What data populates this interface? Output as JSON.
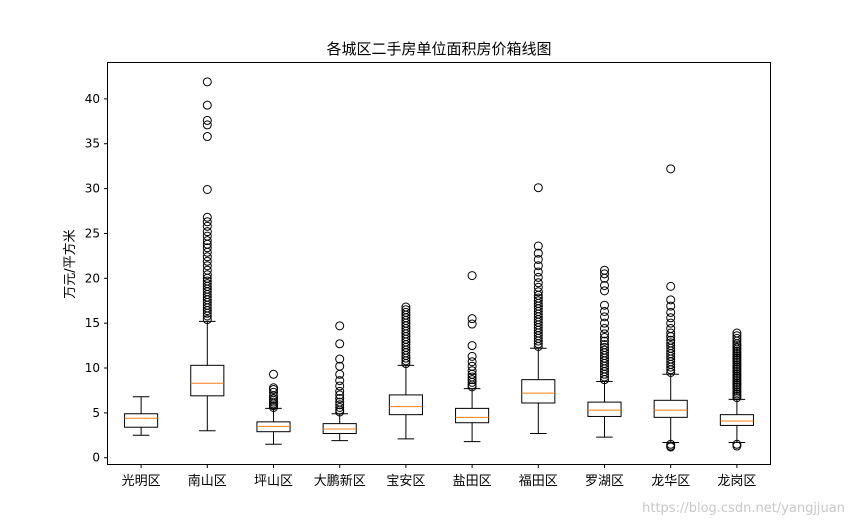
{
  "chart_data": {
    "type": "boxplot",
    "title": "各城区二手房单位面积房价箱线图",
    "xlabel": "",
    "ylabel": "万元/平方米",
    "ylim": [
      -0.7,
      44
    ],
    "yticks": [
      0,
      5,
      10,
      15,
      20,
      25,
      30,
      35,
      40
    ],
    "categories": [
      "光明区",
      "南山区",
      "坪山区",
      "大鹏新区",
      "宝安区",
      "盐田区",
      "福田区",
      "罗湖区",
      "龙华区",
      "龙岗区"
    ],
    "boxes": [
      {
        "whislo": 2.5,
        "q1": 3.4,
        "med": 4.4,
        "q3": 4.9,
        "whishi": 6.8,
        "fliers": []
      },
      {
        "whislo": 3.0,
        "q1": 6.9,
        "med": 8.3,
        "q3": 10.3,
        "whishi": 15.2,
        "fliers": [
          15.4,
          15.8,
          16.1,
          16.4,
          16.7,
          17.0,
          17.3,
          17.6,
          17.9,
          18.2,
          18.5,
          18.8,
          19.1,
          19.4,
          19.7,
          20.0,
          20.4,
          20.9,
          21.4,
          21.9,
          22.4,
          22.9,
          23.4,
          23.8,
          24.2,
          24.7,
          25.2,
          25.8,
          26.3,
          26.8,
          29.9,
          35.8,
          37.1,
          37.6,
          39.3,
          41.9
        ]
      },
      {
        "whislo": 1.5,
        "q1": 2.9,
        "med": 3.5,
        "q3": 4.0,
        "whishi": 5.5,
        "fliers": [
          5.6,
          5.8,
          6.0,
          6.2,
          6.4,
          6.6,
          6.9,
          7.3,
          7.6,
          7.8,
          9.3
        ]
      },
      {
        "whislo": 1.9,
        "q1": 2.7,
        "med": 3.2,
        "q3": 3.8,
        "whishi": 4.9,
        "fliers": [
          5.1,
          5.3,
          5.6,
          5.9,
          6.2,
          6.6,
          7.0,
          7.4,
          8.0,
          8.6,
          9.3,
          10.2,
          11.0,
          12.7,
          14.7
        ]
      },
      {
        "whislo": 2.1,
        "q1": 4.8,
        "med": 5.7,
        "q3": 7.0,
        "whishi": 10.3,
        "fliers": [
          10.5,
          10.8,
          11.1,
          11.4,
          11.7,
          12.0,
          12.3,
          12.6,
          12.9,
          13.2,
          13.5,
          13.8,
          14.1,
          14.4,
          14.7,
          15.0,
          15.3,
          15.6,
          15.9,
          16.2,
          16.5,
          16.8
        ]
      },
      {
        "whislo": 1.8,
        "q1": 3.9,
        "med": 4.5,
        "q3": 5.5,
        "whishi": 7.7,
        "fliers": [
          7.9,
          8.1,
          8.4,
          8.7,
          9.0,
          9.3,
          9.7,
          10.2,
          10.7,
          11.3,
          12.5,
          14.9,
          15.5,
          20.3
        ]
      },
      {
        "whislo": 2.7,
        "q1": 6.1,
        "med": 7.2,
        "q3": 8.7,
        "whishi": 12.2,
        "fliers": [
          12.4,
          12.7,
          13.0,
          13.3,
          13.6,
          13.9,
          14.2,
          14.5,
          14.8,
          15.1,
          15.4,
          15.7,
          16.0,
          16.3,
          16.6,
          16.9,
          17.2,
          17.5,
          17.8,
          18.1,
          18.5,
          19.0,
          19.5,
          20.1,
          20.7,
          21.4,
          22.1,
          22.8,
          23.6,
          30.1
        ]
      },
      {
        "whislo": 2.3,
        "q1": 4.6,
        "med": 5.3,
        "q3": 6.2,
        "whishi": 8.5,
        "fliers": [
          8.7,
          9.0,
          9.3,
          9.6,
          9.9,
          10.2,
          10.5,
          10.8,
          11.1,
          11.4,
          11.7,
          12.0,
          12.3,
          12.6,
          13.0,
          13.4,
          13.8,
          14.4,
          15.0,
          15.7,
          16.3,
          17.0,
          18.6,
          19.2,
          20.0,
          20.5,
          20.9
        ]
      },
      {
        "whislo": 1.7,
        "q1": 4.5,
        "med": 5.3,
        "q3": 6.4,
        "whishi": 9.3,
        "fliers": [
          1.2,
          1.3,
          1.5,
          9.5,
          9.8,
          10.1,
          10.4,
          10.7,
          11.0,
          11.3,
          11.6,
          11.9,
          12.2,
          12.5,
          12.8,
          13.1,
          13.5,
          13.9,
          14.4,
          15.0,
          15.6,
          16.2,
          16.9,
          17.6,
          19.1,
          32.2
        ]
      },
      {
        "whislo": 1.7,
        "q1": 3.6,
        "med": 4.1,
        "q3": 4.8,
        "whishi": 6.5,
        "fliers": [
          1.3,
          1.5,
          6.7,
          6.9,
          7.1,
          7.3,
          7.5,
          7.7,
          7.9,
          8.1,
          8.3,
          8.5,
          8.7,
          8.9,
          9.1,
          9.3,
          9.5,
          9.7,
          9.9,
          10.1,
          10.3,
          10.5,
          10.7,
          10.9,
          11.1,
          11.3,
          11.5,
          11.7,
          11.9,
          12.1,
          12.3,
          12.5,
          12.7,
          13.0,
          13.3,
          13.6,
          13.9
        ]
      }
    ],
    "colors": {
      "box": "#000000",
      "median": "#ff7f0e",
      "flier_edge": "#000000"
    }
  },
  "watermark": "https://blog.csdn.net/yangjjuan"
}
